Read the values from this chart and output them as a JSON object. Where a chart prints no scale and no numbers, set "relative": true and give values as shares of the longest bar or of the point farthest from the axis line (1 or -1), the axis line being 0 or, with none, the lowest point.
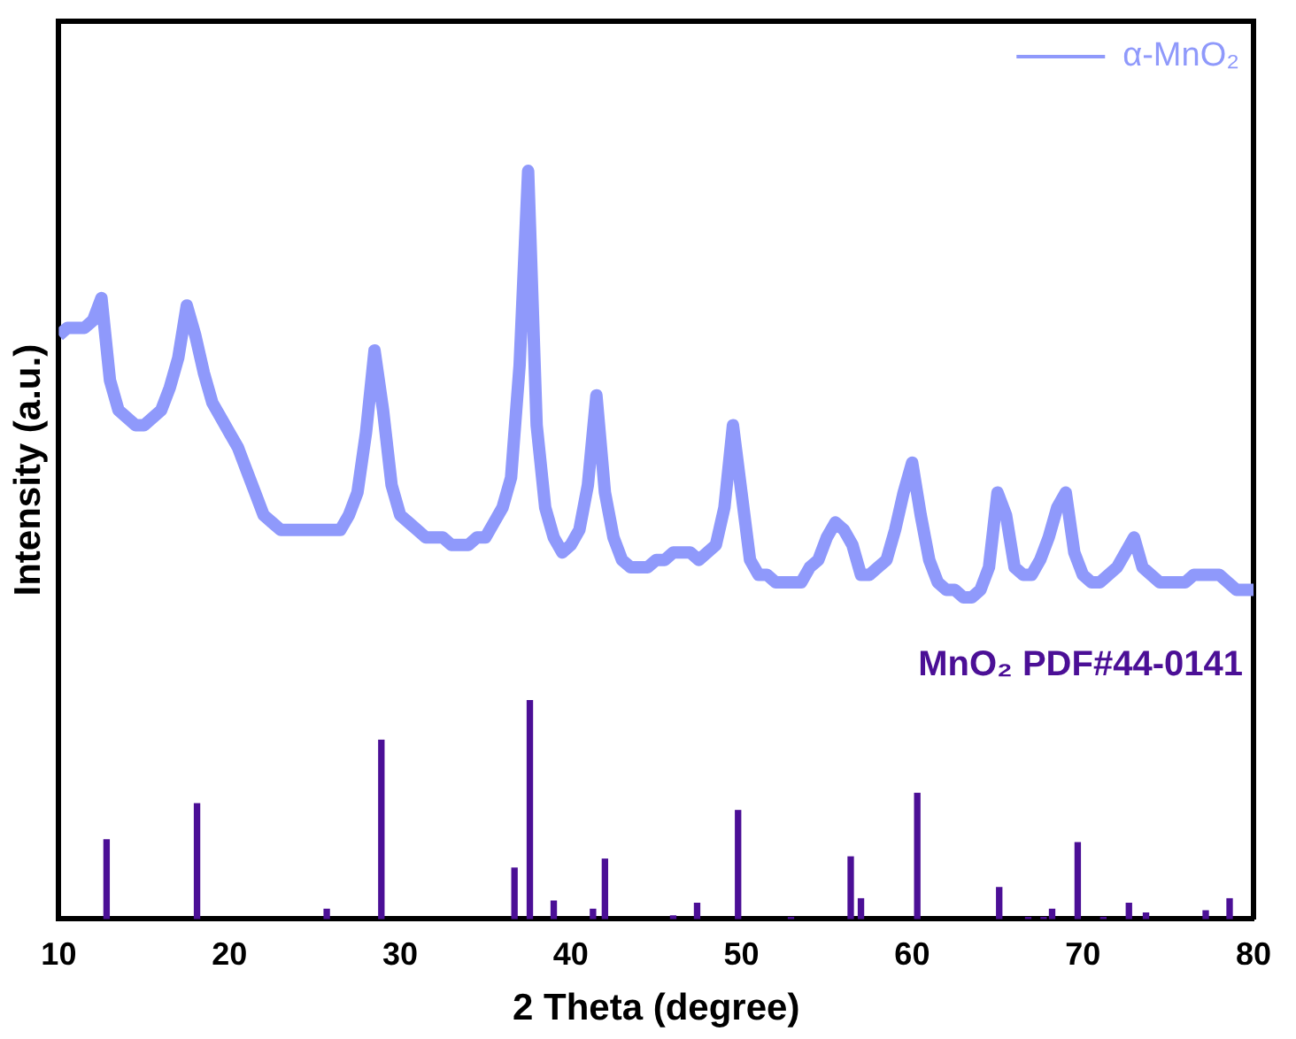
{
  "chart_data": {
    "type": "line",
    "xlabel": "2 Theta (degree)",
    "ylabel": "Intensity (a.u.)",
    "relative": true,
    "legend": "top right",
    "xlim": [
      10,
      80
    ],
    "xticks": [
      10,
      20,
      30,
      40,
      50,
      60,
      70,
      80
    ],
    "series": [
      {
        "name": "α-MnO₂",
        "color": "#8f99fb",
        "x": [
          10,
          10.5,
          11,
          11.5,
          12,
          12.5,
          13,
          13.5,
          14,
          14.5,
          15,
          15.5,
          16,
          16.5,
          17,
          17.5,
          18,
          18.5,
          19,
          19.5,
          20,
          20.5,
          21,
          21.5,
          22,
          22.5,
          23,
          23.5,
          24,
          24.5,
          25,
          25.5,
          26,
          26.5,
          27,
          27.5,
          28,
          28.5,
          29,
          29.5,
          30,
          30.5,
          31,
          31.5,
          32,
          32.5,
          33,
          33.5,
          34,
          34.5,
          35,
          35.5,
          36,
          36.5,
          37,
          37.5,
          38,
          38.5,
          39,
          39.5,
          40,
          40.5,
          41,
          41.5,
          42,
          42.5,
          43,
          43.5,
          44,
          44.5,
          45,
          45.5,
          46,
          46.5,
          47,
          47.5,
          48,
          48.5,
          49,
          49.5,
          50,
          50.5,
          51,
          51.5,
          52,
          52.5,
          53,
          53.5,
          54,
          54.5,
          55,
          55.5,
          56,
          56.5,
          57,
          57.5,
          58,
          58.5,
          59,
          59.5,
          60,
          60.5,
          61,
          61.5,
          62,
          62.5,
          63,
          63.5,
          64,
          64.5,
          65,
          65.5,
          66,
          66.5,
          67,
          67.5,
          68,
          68.5,
          69,
          69.5,
          70,
          70.5,
          71,
          71.5,
          72,
          72.5,
          73,
          73.5,
          74,
          74.5,
          75,
          75.5,
          76,
          76.5,
          77,
          77.5,
          78,
          78.5,
          79,
          79.5,
          80
        ],
        "values": [
          0.78,
          0.79,
          0.79,
          0.79,
          0.8,
          0.83,
          0.72,
          0.68,
          0.67,
          0.66,
          0.66,
          0.67,
          0.68,
          0.71,
          0.75,
          0.82,
          0.78,
          0.73,
          0.69,
          0.67,
          0.65,
          0.63,
          0.6,
          0.57,
          0.54,
          0.53,
          0.52,
          0.52,
          0.52,
          0.52,
          0.52,
          0.52,
          0.52,
          0.52,
          0.54,
          0.57,
          0.65,
          0.76,
          0.68,
          0.58,
          0.54,
          0.53,
          0.52,
          0.51,
          0.51,
          0.51,
          0.5,
          0.5,
          0.5,
          0.51,
          0.51,
          0.53,
          0.55,
          0.59,
          0.74,
          1.0,
          0.66,
          0.55,
          0.51,
          0.49,
          0.5,
          0.52,
          0.58,
          0.7,
          0.57,
          0.51,
          0.48,
          0.47,
          0.47,
          0.47,
          0.48,
          0.48,
          0.49,
          0.49,
          0.49,
          0.48,
          0.49,
          0.5,
          0.55,
          0.66,
          0.57,
          0.48,
          0.46,
          0.46,
          0.45,
          0.45,
          0.45,
          0.45,
          0.47,
          0.48,
          0.51,
          0.53,
          0.52,
          0.5,
          0.46,
          0.46,
          0.47,
          0.48,
          0.52,
          0.57,
          0.61,
          0.54,
          0.48,
          0.45,
          0.44,
          0.44,
          0.43,
          0.43,
          0.44,
          0.47,
          0.57,
          0.54,
          0.47,
          0.46,
          0.46,
          0.48,
          0.51,
          0.55,
          0.57,
          0.49,
          0.46,
          0.45,
          0.45,
          0.46,
          0.47,
          0.49,
          0.51,
          0.47,
          0.46,
          0.45,
          0.45,
          0.45,
          0.45,
          0.46,
          0.46,
          0.46,
          0.46,
          0.45,
          0.44,
          0.44,
          0.44
        ]
      },
      {
        "name": "MnO₂ PDF#44-0141",
        "type": "bar",
        "color": "#4b0f96",
        "x": [
          12.8,
          18.1,
          25.7,
          28.9,
          36.7,
          37.6,
          39.0,
          41.3,
          42.0,
          46.0,
          47.4,
          49.8,
          52.9,
          56.4,
          57.0,
          60.3,
          65.1,
          66.8,
          67.7,
          68.2,
          69.7,
          71.2,
          72.7,
          73.7,
          77.2,
          78.6
        ],
        "values": [
          0.106,
          0.154,
          0.013,
          0.239,
          0.068,
          0.292,
          0.024,
          0.013,
          0.08,
          0.004,
          0.021,
          0.145,
          0.002,
          0.083,
          0.027,
          0.168,
          0.042,
          0.002,
          0.002,
          0.013,
          0.102,
          0.002,
          0.021,
          0.008,
          0.011,
          0.027
        ]
      }
    ]
  }
}
